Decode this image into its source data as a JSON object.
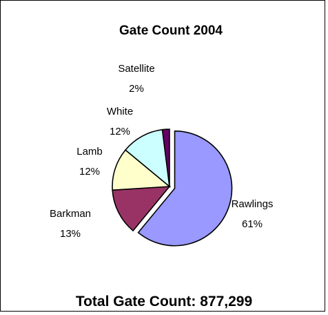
{
  "chart_data": {
    "type": "pie",
    "title": "Gate Count 2004",
    "footer": "Total Gate Count: 877,299",
    "slices": [
      {
        "name": "Rawlings",
        "value": 61,
        "label": "61%",
        "color": "#9999ff"
      },
      {
        "name": "Barkman",
        "value": 13,
        "label": "13%",
        "color": "#993366"
      },
      {
        "name": "Lamb",
        "value": 12,
        "label": "12%",
        "color": "#ffffcc"
      },
      {
        "name": "White",
        "value": 12,
        "label": "12%",
        "color": "#ccffff"
      },
      {
        "name": "Satellite",
        "value": 2,
        "label": "2%",
        "color": "#660066"
      }
    ]
  }
}
